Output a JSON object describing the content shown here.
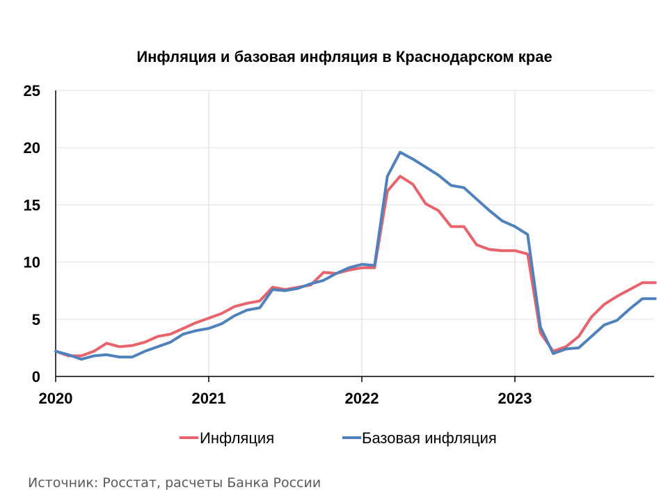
{
  "chart_data": {
    "type": "line",
    "title": "Инфляция и базовая инфляция в Краснодарском крае",
    "xlabel": "",
    "ylabel": "",
    "ylim": [
      0,
      25
    ],
    "yticks": [
      "0",
      "5",
      "10",
      "15",
      "20",
      "25"
    ],
    "xticks": [
      "2020",
      "2021",
      "2022",
      "2023"
    ],
    "grid": true,
    "legend": "bottom",
    "x": [
      "2020-01",
      "2020-02",
      "2020-03",
      "2020-04",
      "2020-05",
      "2020-06",
      "2020-07",
      "2020-08",
      "2020-09",
      "2020-10",
      "2020-11",
      "2020-12",
      "2021-01",
      "2021-02",
      "2021-03",
      "2021-04",
      "2021-05",
      "2021-06",
      "2021-07",
      "2021-08",
      "2021-09",
      "2021-10",
      "2021-11",
      "2021-12",
      "2022-01",
      "2022-02",
      "2022-03",
      "2022-04",
      "2022-05",
      "2022-06",
      "2022-07",
      "2022-08",
      "2022-09",
      "2022-10",
      "2022-11",
      "2022-12",
      "2023-01",
      "2023-02",
      "2023-03",
      "2023-04",
      "2023-05",
      "2023-06",
      "2023-07",
      "2023-08",
      "2023-09",
      "2023-10",
      "2023-11",
      "2023-12"
    ],
    "series": [
      {
        "name": "Инфляция",
        "color": "#e8636b",
        "values": [
          2.2,
          1.8,
          1.8,
          2.2,
          2.9,
          2.6,
          2.7,
          3.0,
          3.5,
          3.7,
          4.2,
          4.7,
          5.1,
          5.5,
          6.1,
          6.4,
          6.6,
          7.8,
          7.6,
          7.8,
          8.0,
          9.1,
          9.0,
          9.3,
          9.5,
          9.5,
          16.2,
          17.5,
          16.8,
          15.1,
          14.5,
          13.1,
          13.1,
          11.5,
          11.1,
          11.0,
          11.0,
          10.7,
          3.8,
          2.2,
          2.6,
          3.5,
          5.2,
          6.3,
          7.0,
          7.6,
          8.2,
          8.2
        ]
      },
      {
        "name": "Базовая инфляция",
        "color": "#4f81bd",
        "values": [
          2.2,
          1.9,
          1.5,
          1.8,
          1.9,
          1.7,
          1.7,
          2.2,
          2.6,
          3.0,
          3.7,
          4.0,
          4.2,
          4.6,
          5.3,
          5.8,
          6.0,
          7.6,
          7.5,
          7.7,
          8.1,
          8.4,
          9.0,
          9.5,
          9.8,
          9.7,
          17.5,
          19.6,
          19.0,
          18.3,
          17.6,
          16.7,
          16.5,
          15.5,
          14.5,
          13.6,
          13.1,
          12.4,
          4.3,
          2.0,
          2.4,
          2.5,
          3.5,
          4.5,
          4.9,
          5.9,
          6.8,
          6.8
        ]
      }
    ]
  },
  "source": "Источник: Росстат, расчеты Банка России"
}
